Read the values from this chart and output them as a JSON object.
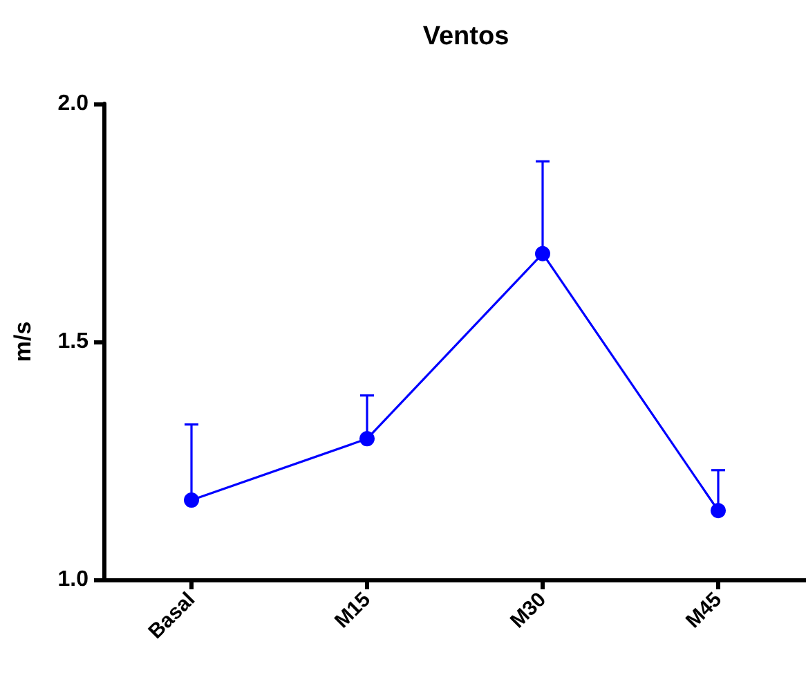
{
  "chart_data": {
    "type": "line",
    "title": "Ventos",
    "ylabel": "m/s",
    "categories": [
      "Basal",
      "M15",
      "M30",
      "M45"
    ],
    "values": [
      1.167,
      1.296,
      1.685,
      1.145
    ],
    "color": "#0000ff",
    "errors": [
      [
        1.167,
        1.326
      ],
      [
        1.296,
        1.387
      ],
      [
        1.685,
        1.879
      ],
      [
        1.145,
        1.23
      ]
    ],
    "ylim": [
      1.0,
      2.0
    ],
    "yticks": [
      {
        "value": 1.0,
        "label": "1.0"
      },
      1.5,
      {
        "value": 2.0,
        "label": "2.0"
      }
    ],
    "marker": "circle",
    "line_style": "solid"
  }
}
